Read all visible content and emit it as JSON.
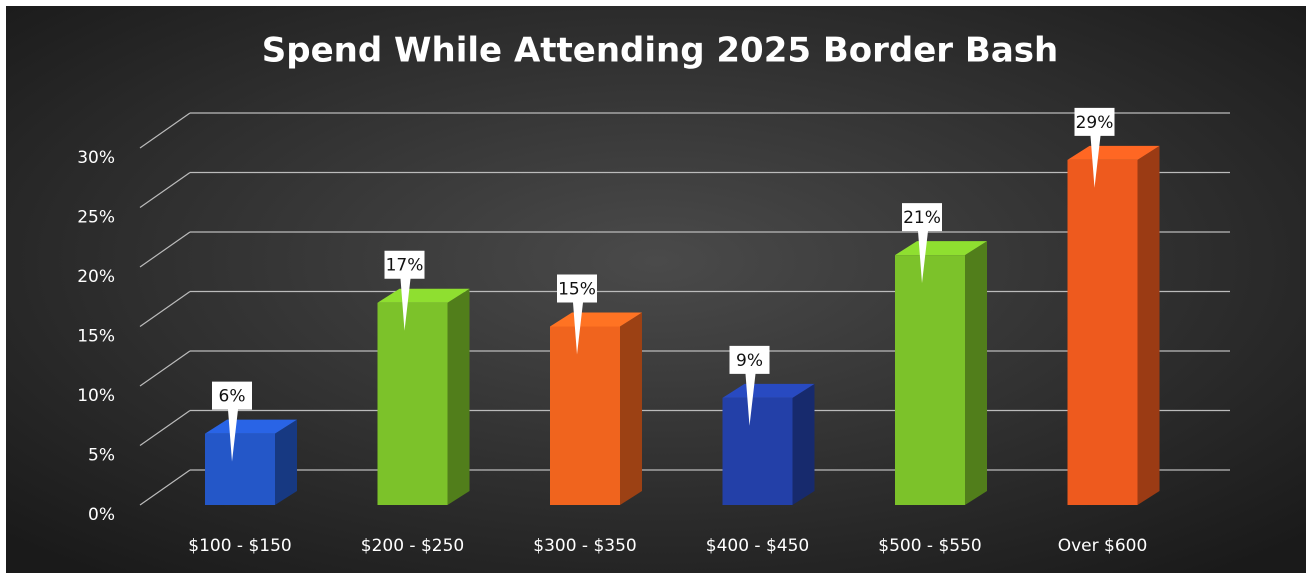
{
  "chart_data": {
    "type": "bar3d",
    "title": "Spend While Attending 2025 Border Bash",
    "categories": [
      "$100 - $150",
      "$200 - $250",
      "$300 - $350",
      "$400 - $450",
      "$500 - $550",
      "Over $600"
    ],
    "values": [
      6,
      17,
      15,
      9,
      21,
      29
    ],
    "value_labels": [
      "6%",
      "17%",
      "15%",
      "9%",
      "21%",
      "29%"
    ],
    "colors": [
      "#2457c8",
      "#7cc22a",
      "#f0641e",
      "#2340a8",
      "#7cc22a",
      "#ee5a1e"
    ],
    "ylim": [
      0,
      30
    ],
    "yticks": [
      {
        "value": 0,
        "label": "0%"
      },
      {
        "value": 5,
        "label": "5%"
      },
      {
        "value": 10,
        "label": "10%"
      },
      {
        "value": 15,
        "label": "15%"
      },
      {
        "value": 20,
        "label": "20%"
      },
      {
        "value": 25,
        "label": "25%"
      },
      {
        "value": 30,
        "label": "30%"
      }
    ],
    "grid": true
  }
}
